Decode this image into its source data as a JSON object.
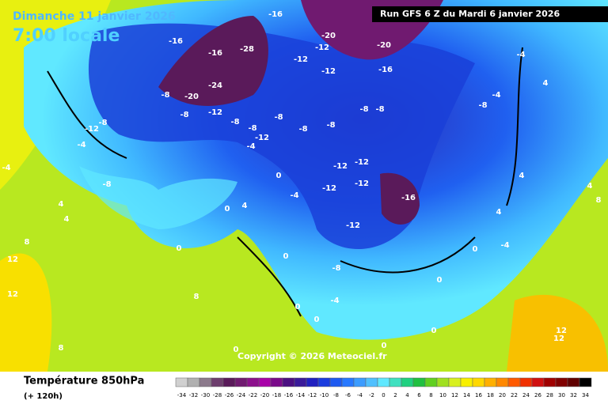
{
  "header": {
    "date": "Dimanche 11 janvier 2026",
    "hour": "7:00 locale",
    "run": "Run GFS 6 Z du Mardi 6 janvier 2026"
  },
  "map": {
    "copyright": "Copyright © 2026 Meteociel.fr",
    "contour_labels": [
      "-16",
      "-20",
      "-12",
      "-12",
      "-12",
      "-20",
      "-16",
      "-28",
      "-24",
      "-20",
      "-16",
      "-16",
      "-8",
      "-8",
      "-12",
      "-8",
      "-8",
      "-8",
      "-8",
      "-8",
      "-8",
      "-8",
      "-8",
      "-4",
      "-4",
      "4",
      "-12",
      "-4",
      "-12",
      "-12",
      "-12",
      "-12",
      "-16",
      "-12",
      "-8",
      "-12",
      "-4",
      "-8",
      "0",
      "-4",
      "0",
      "4",
      "4",
      "4",
      "0",
      "0",
      "-8",
      "-4",
      "0",
      "0",
      "0",
      "0",
      "-4",
      "4",
      "8",
      "8",
      "12",
      "12",
      "8",
      "12",
      "12",
      "4",
      "8",
      "4",
      "0",
      "0",
      "0",
      "-4"
    ]
  },
  "legend": {
    "title": "Température 850hPa",
    "subtitle": "(+ 120h)",
    "ticks": [
      -34,
      -32,
      -30,
      -28,
      -26,
      -24,
      -22,
      -20,
      -18,
      -16,
      -14,
      -12,
      -10,
      -8,
      -6,
      -4,
      -2,
      0,
      2,
      4,
      6,
      8,
      10,
      12,
      14,
      16,
      18,
      20,
      22,
      24,
      26,
      28,
      30,
      32,
      34
    ],
    "colors": [
      "#d0d0d0",
      "#b0b0b0",
      "#8c7a8c",
      "#6e3e6e",
      "#5a1a5a",
      "#701a70",
      "#8c108c",
      "#a800a8",
      "#7a0a8a",
      "#4b0f82",
      "#3a1a9a",
      "#2020c0",
      "#1a3cde",
      "#1e5af0",
      "#2878ff",
      "#3c9cff",
      "#50c0ff",
      "#60e8ff",
      "#40e0c0",
      "#20d080",
      "#20c040",
      "#60d020",
      "#a0e020",
      "#d8f020",
      "#f8f000",
      "#ffd800",
      "#ffb000",
      "#ff8800",
      "#ff5a00",
      "#f03000",
      "#d01010",
      "#a00000",
      "#800000",
      "#600000",
      "#000000"
    ]
  }
}
